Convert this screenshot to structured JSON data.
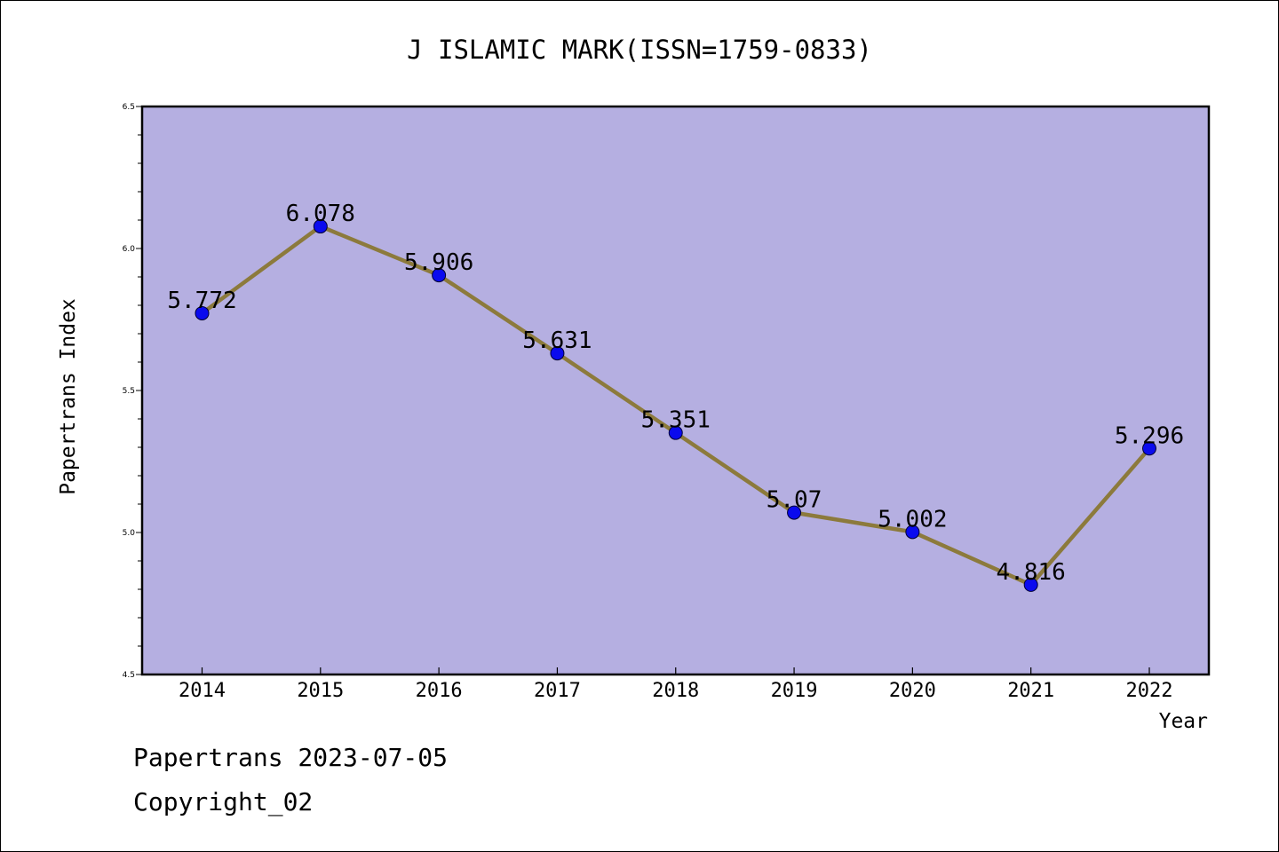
{
  "chart_data": {
    "type": "line",
    "title": "J ISLAMIC MARK(ISSN=1759-0833)",
    "xlabel": "Year",
    "ylabel": "Papertrans Index",
    "categories": [
      "2014",
      "2015",
      "2016",
      "2017",
      "2018",
      "2019",
      "2020",
      "2021",
      "2022"
    ],
    "series": [
      {
        "values": [
          5.772,
          6.078,
          5.906,
          5.631,
          5.351,
          5.07,
          5.002,
          4.816,
          5.296
        ],
        "labels": [
          "5.772",
          "6.078",
          "5.906",
          "5.631",
          "5.351",
          "5.07",
          "5.002",
          "4.816",
          "5.296"
        ]
      }
    ],
    "ylim": [
      4.5,
      6.5
    ],
    "yticks": [
      "4.5",
      "5.0",
      "5.5",
      "6.0",
      "6.5"
    ],
    "grid": false,
    "colors": {
      "plot_background": "#b5afe1",
      "line": "#8c7a3c",
      "marker": "#0a0aee"
    }
  },
  "footer": {
    "line1": "Papertrans 2023-07-05",
    "line2": "Copyright_02"
  }
}
